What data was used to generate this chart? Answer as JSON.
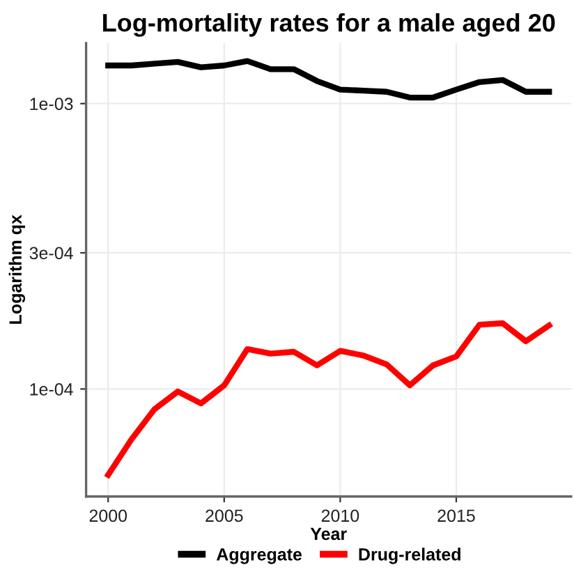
{
  "chart_data": {
    "type": "line",
    "title": "Log-mortality rates for a male aged 20",
    "xlabel": "Year",
    "ylabel": "Logarithm qx",
    "x": [
      2000,
      2001,
      2002,
      2003,
      2004,
      2005,
      2006,
      2007,
      2008,
      2009,
      2010,
      2011,
      2012,
      2013,
      2014,
      2015,
      2016,
      2017,
      2018,
      2019
    ],
    "series": [
      {
        "name": "Aggregate",
        "color": "#000000",
        "values": [
          0.00136,
          0.00136,
          0.00138,
          0.0014,
          0.00134,
          0.00136,
          0.00141,
          0.00132,
          0.00132,
          0.0012,
          0.00112,
          0.00111,
          0.0011,
          0.00105,
          0.00105,
          0.00112,
          0.00119,
          0.00121,
          0.0011,
          0.0011
        ]
      },
      {
        "name": "Drug-related",
        "color": "#ff0000",
        "values": [
          5e-05,
          6.65e-05,
          8.5e-05,
          9.8e-05,
          8.9e-05,
          0.000103,
          0.000138,
          0.000133,
          0.000135,
          0.000121,
          0.000136,
          0.000131,
          0.000122,
          0.000103,
          0.000121,
          0.00013,
          0.000168,
          0.00017,
          0.000147,
          0.000167
        ]
      }
    ],
    "log": "y",
    "xlim": [
      1999.05,
      2019.95
    ],
    "ylim": [
      4.2e-05,
      0.00163
    ],
    "xticks": [
      2000,
      2005,
      2010,
      2015
    ],
    "yticks": [
      {
        "value": 0.0001,
        "label": "1e-04"
      },
      {
        "value": 0.0003,
        "label": "3e-04"
      },
      {
        "value": 0.001,
        "label": "1e-03"
      }
    ],
    "grid": true,
    "legend": "bottom",
    "line_style": "solid",
    "marker": "none"
  }
}
